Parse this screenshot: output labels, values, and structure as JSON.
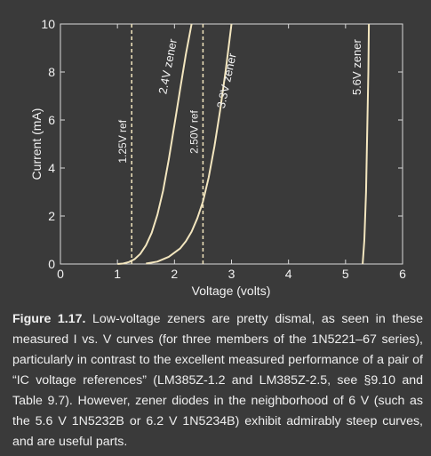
{
  "chart_data": {
    "type": "line",
    "xlabel": "Voltage (volts)",
    "ylabel": "Current (mA)",
    "xlim": [
      0,
      6
    ],
    "ylim": [
      0,
      10
    ],
    "x_ticks": [
      "0",
      "1",
      "2",
      "3",
      "4",
      "5",
      "6"
    ],
    "y_ticks": [
      "0",
      "2",
      "4",
      "6",
      "8",
      "10"
    ],
    "grid": false,
    "series": [
      {
        "name": "2.4V zener",
        "x": [
          1.0,
          1.1,
          1.2,
          1.3,
          1.4,
          1.5,
          1.6,
          1.7,
          1.8,
          1.9,
          2.0,
          2.1,
          2.2,
          2.3
        ],
        "y": [
          0.0,
          0.02,
          0.08,
          0.2,
          0.42,
          0.78,
          1.3,
          2.05,
          3.05,
          4.35,
          5.8,
          7.3,
          8.75,
          10.0
        ]
      },
      {
        "name": "3.3V zener",
        "x": [
          1.5,
          1.7,
          1.9,
          2.1,
          2.2,
          2.3,
          2.4,
          2.5,
          2.6,
          2.7,
          2.8,
          2.9,
          3.0
        ],
        "y": [
          0.02,
          0.1,
          0.3,
          0.65,
          0.95,
          1.35,
          1.9,
          2.6,
          3.6,
          4.9,
          6.4,
          8.1,
          10.0
        ]
      },
      {
        "name": "5.6V zener",
        "x": [
          5.3,
          5.33,
          5.36,
          5.38,
          5.4,
          5.41
        ],
        "y": [
          0.0,
          1.0,
          3.0,
          5.5,
          8.0,
          10.0
        ]
      }
    ],
    "references": [
      {
        "name": "1.25V ref",
        "x": 1.25
      },
      {
        "name": "2.50V ref",
        "x": 2.5
      }
    ]
  },
  "caption": {
    "lead": "Figure 1.17.",
    "text": "Low-voltage zeners are pretty dismal, as seen in these measured I vs. V curves (for three members of the 1N5221–67 series), particularly in contrast to the excellent measured performance of a pair of “IC voltage references” (LM385Z-1.2 and LM385Z-2.5, see §9.10 and Table 9.7). However, zener diodes in the neighborhood of 6 V (such as the 5.6 V 1N5232B or 6.2 V 1N5234B) exhibit admirably steep curves, and are useful parts."
  },
  "colors": {
    "curve": "#f3e6bf",
    "axis": "#d9d9d9",
    "background": "#3a3a3a"
  }
}
